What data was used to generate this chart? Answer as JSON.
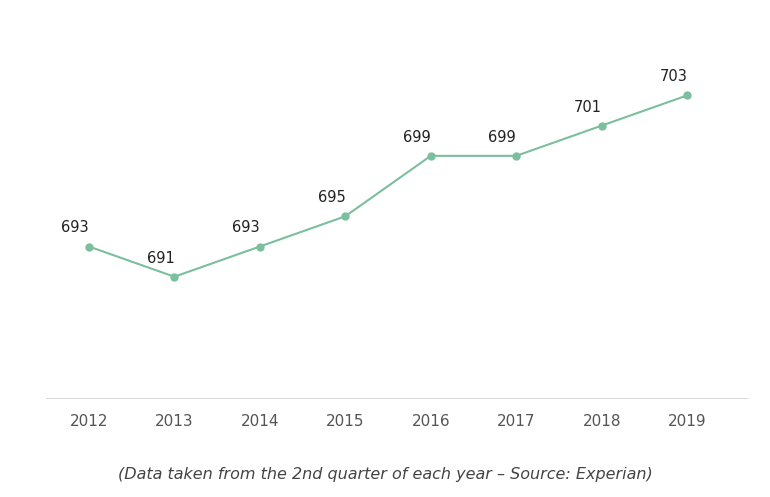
{
  "years": [
    2012,
    2013,
    2014,
    2015,
    2016,
    2017,
    2018,
    2019
  ],
  "values": [
    693,
    691,
    693,
    695,
    699,
    699,
    701,
    703
  ],
  "line_color": "#7bbf9e",
  "marker_color": "#7bbf9e",
  "marker_size": 5,
  "line_width": 1.5,
  "subtitle": "(Data taken from the 2nd quarter of each year – Source: Experian)",
  "ylim": [
    683,
    708
  ],
  "grid_color": "#d8d8d8",
  "background_color": "#ffffff",
  "label_fontsize": 11,
  "subtitle_fontsize": 11.5,
  "annotation_fontsize": 10.5
}
